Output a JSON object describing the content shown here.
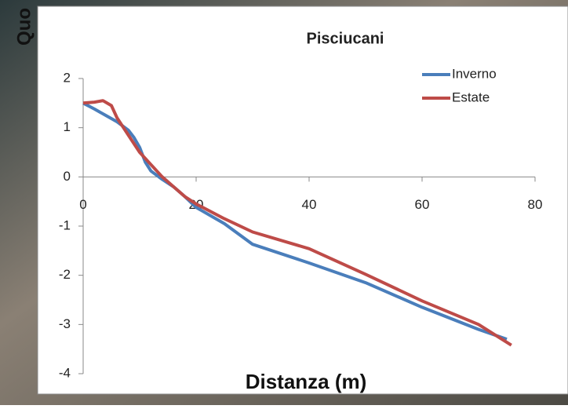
{
  "chart_data": {
    "type": "line",
    "title": "Pisciucani",
    "x_label": "Distanza (m)",
    "y_label": "Quo",
    "xlim": [
      0,
      80
    ],
    "xticks": [
      0,
      20,
      40,
      60,
      80
    ],
    "ylim": [
      -4,
      2
    ],
    "yticks": [
      -4,
      -3,
      -2,
      -1,
      0,
      1,
      2
    ],
    "grid": false,
    "legend": "upper right",
    "series": [
      {
        "name": "Inverno",
        "color": "#4a7ebb",
        "x": [
          0,
          2,
          4,
          6,
          8,
          9,
          10,
          11,
          12,
          14,
          16,
          18,
          20,
          25,
          30,
          40,
          50,
          60,
          70,
          75
        ],
        "values": [
          1.5,
          1.38,
          1.25,
          1.12,
          0.95,
          0.8,
          0.6,
          0.3,
          0.12,
          -0.05,
          -0.2,
          -0.4,
          -0.62,
          -0.95,
          -1.37,
          -1.75,
          -2.15,
          -2.65,
          -3.1,
          -3.3
        ]
      },
      {
        "name": "Estate",
        "color": "#be4b48",
        "x": [
          0,
          2,
          3.5,
          5,
          6,
          8,
          10,
          12,
          14,
          16,
          18,
          20,
          25,
          30,
          40,
          50,
          60,
          70,
          75.8
        ],
        "values": [
          1.5,
          1.52,
          1.55,
          1.45,
          1.2,
          0.85,
          0.5,
          0.25,
          0.0,
          -0.2,
          -0.4,
          -0.55,
          -0.85,
          -1.12,
          -1.46,
          -1.98,
          -2.52,
          -3.0,
          -3.42
        ]
      }
    ]
  }
}
